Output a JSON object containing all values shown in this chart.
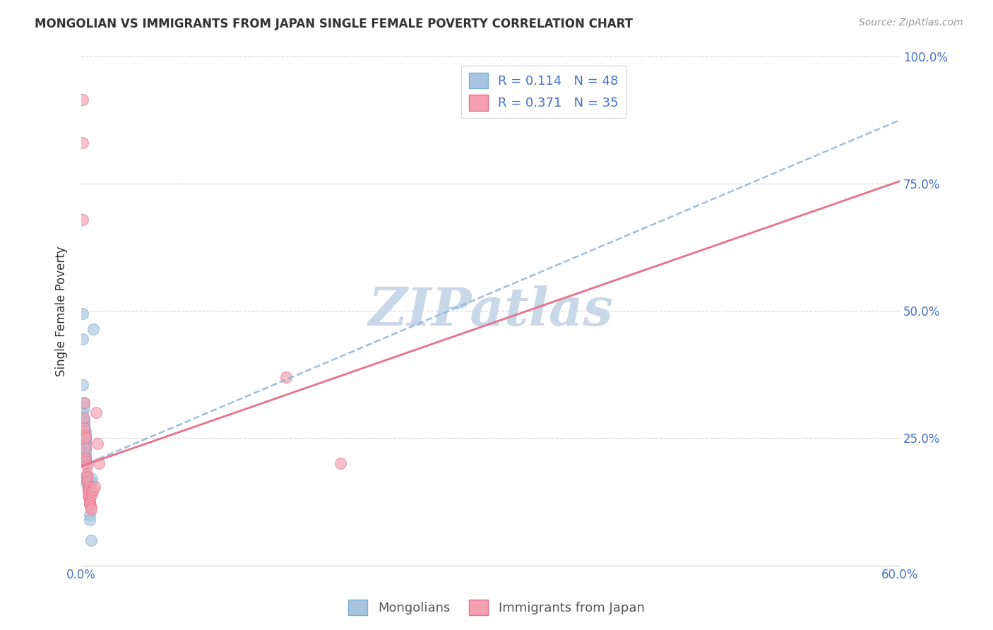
{
  "title": "MONGOLIAN VS IMMIGRANTS FROM JAPAN SINGLE FEMALE POVERTY CORRELATION CHART",
  "source": "Source: ZipAtlas.com",
  "xlabel": "",
  "ylabel": "Single Female Poverty",
  "xlim": [
    0,
    0.6
  ],
  "ylim": [
    0,
    1.0
  ],
  "xticks": [
    0,
    0.1,
    0.2,
    0.3,
    0.4,
    0.5,
    0.6
  ],
  "xticklabels": [
    "0.0%",
    "",
    "",
    "",
    "",
    "",
    "60.0%"
  ],
  "yticks": [
    0,
    0.25,
    0.5,
    0.75,
    1.0
  ],
  "yticklabels": [
    "",
    "25.0%",
    "50.0%",
    "75.0%",
    "100.0%"
  ],
  "mongolian_color": "#a8c4e0",
  "japan_color": "#f4a0b0",
  "mongolian_edge": "#7aafd4",
  "japan_edge": "#e8708a",
  "trend_blue_color": "#8ab4d8",
  "trend_pink_color": "#e8708a",
  "watermark": "ZIPatlas",
  "watermark_color": "#c8d8e8",
  "legend_R1": "R = 0.114",
  "legend_N1": "N = 48",
  "legend_R2": "R = 0.371",
  "legend_N2": "N = 35",
  "mongolians_label": "Mongolians",
  "japan_label": "Immigrants from Japan",
  "trend_blue_x0": 0.0,
  "trend_blue_y0": 0.195,
  "trend_blue_x1": 0.6,
  "trend_blue_y1": 0.875,
  "trend_pink_x0": 0.0,
  "trend_pink_y0": 0.195,
  "trend_pink_x1": 0.6,
  "trend_pink_y1": 0.755,
  "mongolian_x": [
    0.001,
    0.001,
    0.001,
    0.001,
    0.002,
    0.002,
    0.002,
    0.002,
    0.002,
    0.002,
    0.002,
    0.002,
    0.002,
    0.002,
    0.002,
    0.003,
    0.003,
    0.003,
    0.003,
    0.003,
    0.003,
    0.003,
    0.003,
    0.003,
    0.003,
    0.003,
    0.003,
    0.003,
    0.004,
    0.004,
    0.004,
    0.004,
    0.004,
    0.004,
    0.004,
    0.005,
    0.005,
    0.005,
    0.005,
    0.005,
    0.005,
    0.006,
    0.006,
    0.006,
    0.007,
    0.007,
    0.008,
    0.009
  ],
  "mongolian_y": [
    0.495,
    0.445,
    0.355,
    0.3,
    0.285,
    0.32,
    0.31,
    0.28,
    0.27,
    0.265,
    0.27,
    0.28,
    0.265,
    0.265,
    0.26,
    0.255,
    0.255,
    0.265,
    0.25,
    0.25,
    0.245,
    0.24,
    0.23,
    0.23,
    0.24,
    0.22,
    0.215,
    0.21,
    0.2,
    0.175,
    0.175,
    0.175,
    0.165,
    0.165,
    0.16,
    0.155,
    0.155,
    0.15,
    0.155,
    0.16,
    0.16,
    0.1,
    0.09,
    0.12,
    0.05,
    0.165,
    0.17,
    0.465
  ],
  "japan_x": [
    0.001,
    0.001,
    0.001,
    0.002,
    0.002,
    0.002,
    0.002,
    0.003,
    0.003,
    0.003,
    0.003,
    0.003,
    0.004,
    0.004,
    0.004,
    0.004,
    0.005,
    0.005,
    0.005,
    0.005,
    0.005,
    0.006,
    0.006,
    0.006,
    0.007,
    0.007,
    0.008,
    0.008,
    0.009,
    0.01,
    0.011,
    0.012,
    0.013,
    0.15,
    0.19
  ],
  "japan_y": [
    0.915,
    0.83,
    0.68,
    0.32,
    0.29,
    0.265,
    0.27,
    0.255,
    0.25,
    0.23,
    0.21,
    0.205,
    0.195,
    0.18,
    0.175,
    0.165,
    0.155,
    0.15,
    0.145,
    0.14,
    0.135,
    0.13,
    0.125,
    0.12,
    0.115,
    0.11,
    0.14,
    0.145,
    0.15,
    0.155,
    0.3,
    0.24,
    0.2,
    0.37,
    0.2
  ]
}
